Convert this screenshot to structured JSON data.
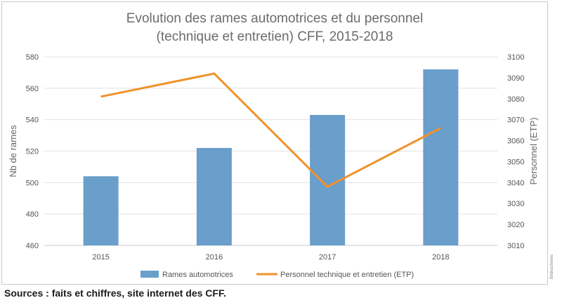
{
  "chart_data": {
    "type": "bar",
    "title": [
      "Evolution des rames automotrices et du personnel",
      "(technique et entretien) CFF, 2015-2018"
    ],
    "categories": [
      "2015",
      "2016",
      "2017",
      "2018"
    ],
    "series": [
      {
        "name": "Rames automotrices",
        "type": "bar",
        "axis": "left",
        "color": "#6a9ecb",
        "values": [
          504,
          522,
          543,
          572
        ]
      },
      {
        "name": "Personnel technique et entretien (ETP)",
        "type": "line",
        "axis": "right",
        "color": "#f0922b",
        "values": [
          3081,
          3092,
          3038,
          3066
        ]
      }
    ],
    "ylabel_left": "Nb de rames",
    "ylabel_right": "Personnel (ETP)",
    "ylim_left": [
      460,
      580
    ],
    "ylim_right": [
      3010,
      3100
    ],
    "yticks_left": [
      "460",
      "480",
      "500",
      "520",
      "540",
      "560",
      "580"
    ],
    "yticks_right": [
      "3010",
      "3020",
      "3030",
      "3040",
      "3050",
      "3060",
      "3070",
      "3080",
      "3090",
      "3100"
    ],
    "grid": true,
    "legend": "bottom"
  },
  "side_credit": "Bildnachweis",
  "sources": "Sources : faits et chiffres, site internet des CFF."
}
